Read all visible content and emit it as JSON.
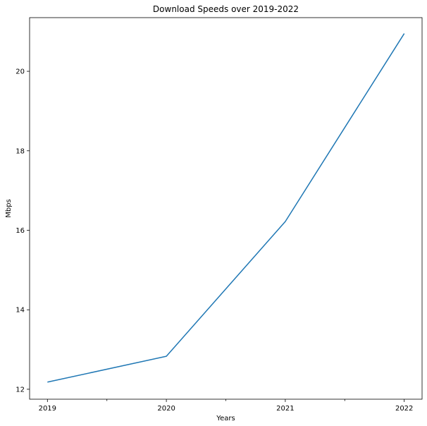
{
  "chart_data": {
    "type": "line",
    "title": "Download Speeds over 2019-2022",
    "xlabel": "Years",
    "ylabel": "Mbps",
    "x": [
      2019,
      2020,
      2021,
      2022
    ],
    "x_tick_labels": [
      "2019",
      "2020",
      "2021",
      "2022"
    ],
    "x_minor_ticks": [
      2019.5,
      2020.5,
      2021.5
    ],
    "y_ticks": [
      12,
      14,
      16,
      18,
      20
    ],
    "y_tick_labels": [
      "12",
      "14",
      "16",
      "18",
      "20"
    ],
    "xlim": [
      2018.85,
      2022.15
    ],
    "ylim": [
      11.75,
      21.35
    ],
    "grid": false,
    "series": [
      {
        "values": [
          12.18,
          12.83,
          16.22,
          20.95
        ],
        "color": "#1f77b4"
      }
    ]
  }
}
